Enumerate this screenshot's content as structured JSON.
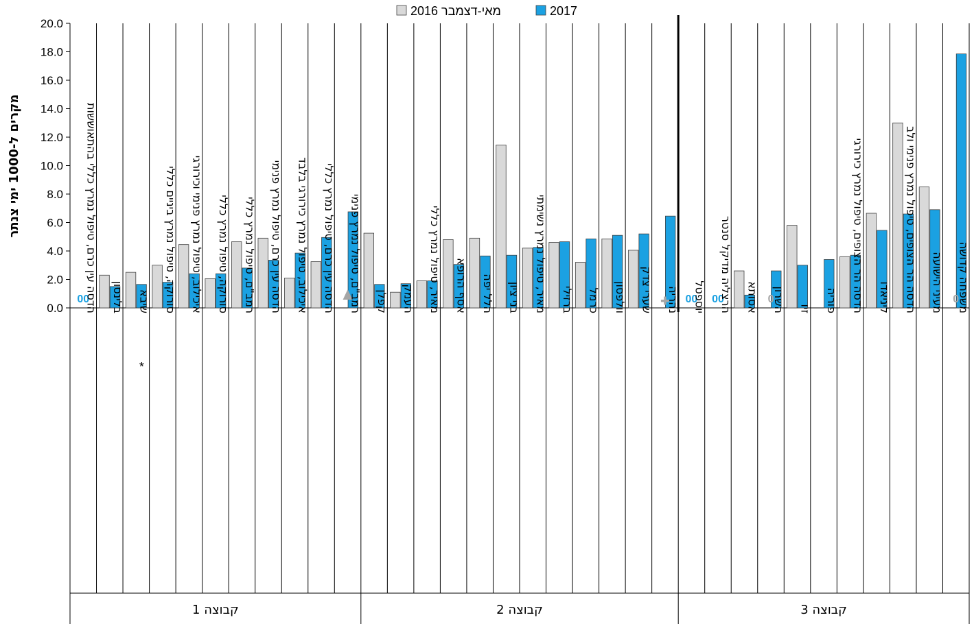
{
  "chart_data": {
    "type": "bar",
    "ylabel": "מקרים ל-1000 ימי צנתר",
    "ylim": [
      0,
      20
    ],
    "yticks": [
      "0.0",
      "2.0",
      "4.0",
      "6.0",
      "8.0",
      "10.0",
      "12.0",
      "14.0",
      "16.0",
      "18.0",
      "20.0"
    ],
    "legend_position": "top-center",
    "grid": "vertical category separators",
    "series": [
      {
        "name": "מאי-דצמבר 2016",
        "color": "#d9d9d9"
      },
      {
        "name": "2017",
        "color": "#1ba1e2"
      }
    ],
    "categories": [
      "הדסה עין כרם, טיפול נמרץ כללי בהתאוששות",
      "בלינסון",
      "שיבא",
      "סורוקה, טיפול נמרץ ביניים כללי",
      "איכילוב, טיפול נמרץ פנימי וכירורגי",
      "סורוקה, טיפול נמרץ כללי",
      "רמב\"ם, טיפול נמרץ כללי",
      "הדסה עין כרם, טיפול נמרץ פנימי",
      "איכילוב, טיפול נמרץ כירורגי בלבד",
      "הדסה עין כרם, טיפול נמרץ כללי",
      "רמב\"ם, טיפול נמרץ פנימי",
      "קפלן",
      "העמק",
      "מאיר, טיפול נמרץ כללי",
      "אסף הרופא",
      "הלל יפה",
      "בני ציון",
      "מאיר, טיפול נמרץ נשימתי",
      "ברזילי",
      "כרמל",
      "וולפסון",
      "שערי צדק",
      "נהריה",
      "יוספטל",
      "הרצליה מדיקל סנטר",
      "אסותא",
      "השרון",
      "זיו",
      "פוריה",
      "הדסה הר הצופים, טיפול נמרץ כירורגי",
      "ליניאדו",
      "הדסה הר הצופים, טיפול נמרץ פנימי ולב",
      "מעיני הישועה",
      "משפחה קדושה"
    ],
    "values_2016": [
      0,
      2.3,
      2.5,
      3.0,
      4.45,
      2.05,
      4.65,
      4.9,
      2.1,
      3.25,
      null,
      5.25,
      1.1,
      1.9,
      4.8,
      4.9,
      11.45,
      4.2,
      4.6,
      3.2,
      4.85,
      4.05,
      null,
      0,
      0,
      2.6,
      0,
      5.8,
      null,
      3.6,
      6.65,
      13.0,
      8.5,
      0
    ],
    "values_2017": [
      0,
      1.5,
      1.65,
      1.8,
      2.4,
      2.4,
      2.8,
      3.35,
      3.85,
      4.95,
      6.75,
      1.65,
      1.7,
      1.9,
      3.05,
      3.65,
      3.7,
      4.25,
      4.65,
      4.85,
      5.1,
      5.2,
      6.45,
      0,
      0,
      0.9,
      2.6,
      3.0,
      3.4,
      3.7,
      5.45,
      6.6,
      6.9,
      17.85
    ],
    "zero_labels": [
      {
        "index": 0,
        "text": "00",
        "color": "#1ba1e2"
      },
      {
        "index": 23,
        "text": "00",
        "color": "#1ba1e2"
      },
      {
        "index": 24,
        "text": "00",
        "color": "#1ba1e2"
      },
      {
        "index": 26,
        "text": "0",
        "color": "#a6a6a6"
      },
      {
        "index": 33,
        "text": "0",
        "color": "#a6a6a6"
      }
    ],
    "annotations": [
      {
        "index": 2,
        "text": "*"
      },
      {
        "index": 10,
        "symbol": "▲"
      },
      {
        "index": 22,
        "symbol": "+"
      }
    ],
    "groups": [
      {
        "label": "קבוצה 1",
        "start": 0,
        "end": 10
      },
      {
        "label": "קבוצה 2",
        "start": 11,
        "end": 22
      },
      {
        "label": "קבוצה 3",
        "start": 23,
        "end": 33
      }
    ],
    "emphasized_separator_after_index": 22
  }
}
